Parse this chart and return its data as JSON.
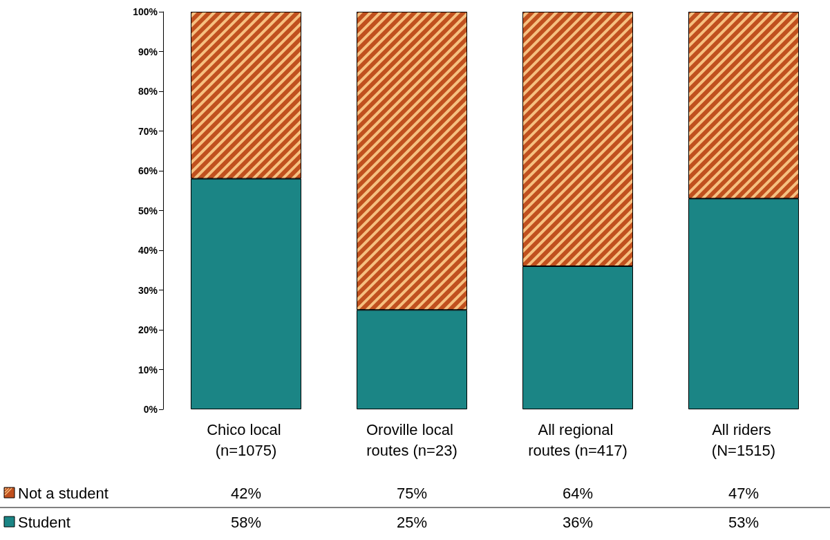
{
  "chart_data": {
    "type": "bar",
    "stacked": true,
    "categories": [
      "Chico local (n=1075)",
      "Oroville local routes (n=23)",
      "All regional routes (n=417)",
      "All riders (N=1515)"
    ],
    "series": [
      {
        "name": "Student",
        "color": "#1b8585",
        "values": [
          58,
          25,
          36,
          53
        ],
        "value_labels": [
          "58%",
          "25%",
          "36%",
          "53%"
        ]
      },
      {
        "name": "Not a student",
        "color": "#c0501e",
        "values": [
          42,
          75,
          64,
          47
        ],
        "value_labels": [
          "42%",
          "75%",
          "64%",
          "47%"
        ]
      }
    ],
    "ylim": [
      0,
      100
    ],
    "yticks": [
      {
        "value": 0,
        "label": "0%"
      },
      {
        "value": 10,
        "label": "10%"
      },
      {
        "value": 20,
        "label": "20%"
      },
      {
        "value": 30,
        "label": "30%"
      },
      {
        "value": 40,
        "label": "40%"
      },
      {
        "value": 50,
        "label": "50%"
      },
      {
        "value": 60,
        "label": "60%"
      },
      {
        "value": 70,
        "label": "70%"
      },
      {
        "value": 80,
        "label": "80%"
      },
      {
        "value": 90,
        "label": "90%"
      },
      {
        "value": 100,
        "label": "100%"
      }
    ],
    "grid": false,
    "legend": "bottom left"
  }
}
